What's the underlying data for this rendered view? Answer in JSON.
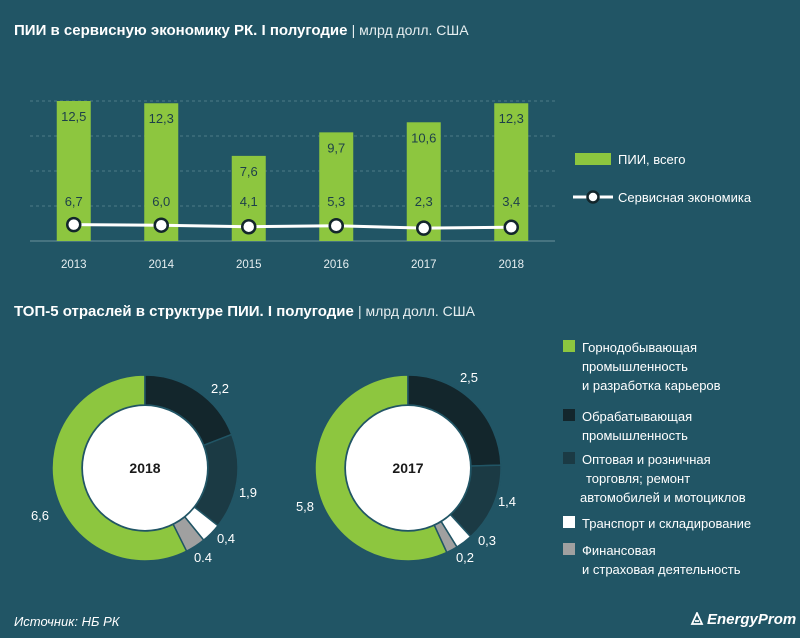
{
  "title1": {
    "main": "ПИИ  в сервисную  экономику  РК.  I полугодие",
    "unit": "| млрд  долл. США"
  },
  "title2": {
    "main": "ТОП-5  отраслей в структуре ПИИ.  I полугодие",
    "unit": "| млрд  долл. США"
  },
  "footer": {
    "source": "Источник: НБ РК",
    "brand": "EnergyProm"
  },
  "colors": {
    "background": "#215565",
    "green": "#8dc63f",
    "dark1": "#13262c",
    "dark2": "#1b3a44",
    "white": "#ffffff",
    "gray": "#a0a0a0"
  },
  "chart_data": [
    {
      "type": "bar",
      "categories": [
        "2013",
        "2014",
        "2015",
        "2016",
        "2017",
        "2018"
      ],
      "series": [
        {
          "name": "ПИИ, всего",
          "type": "bar",
          "values": [
            12.5,
            12.3,
            7.6,
            9.7,
            10.6,
            12.3
          ],
          "labels": [
            "12,5",
            "12,3",
            "7,6",
            "9,7",
            "10,6",
            "12,3"
          ]
        },
        {
          "name": "Сервисная экономика",
          "type": "line",
          "values": [
            6.7,
            6.0,
            4.1,
            5.3,
            2.3,
            3.4
          ],
          "labels": [
            "6,7",
            "6,0",
            "4,1",
            "5,3",
            "2,3",
            "3,4"
          ]
        }
      ],
      "ylim": [
        0,
        12.5
      ],
      "grid": true,
      "legend": "right"
    },
    {
      "type": "pie",
      "center_label": "2018",
      "categories": [
        "Горнодобывающая промышленность и разработка карьеров",
        "Обрабатывающая промышленность",
        "Оптовая и розничная торговля; ремонт автомобилей и мотоциклов",
        "Транспорт и складирование",
        "Финансовая и страховая деятельность"
      ],
      "values": [
        6.6,
        2.2,
        1.9,
        0.4,
        0.4
      ],
      "labels": [
        "6,6",
        "2,2",
        "1,9",
        "0,4",
        "0.4"
      ]
    },
    {
      "type": "pie",
      "center_label": "2017",
      "categories": [
        "Горнодобывающая промышленность и разработка карьеров",
        "Обрабатывающая промышленность",
        "Оптовая и розничная торговля; ремонт автомобилей и мотоциклов",
        "Транспорт и складирование",
        "Финансовая и страховая деятельность"
      ],
      "values": [
        5.8,
        2.5,
        1.4,
        0.3,
        0.2
      ],
      "labels": [
        "5,8",
        "2,5",
        "1,4",
        "0,3",
        "0,2"
      ]
    }
  ],
  "legend_top": [
    {
      "label": "ПИИ, всего"
    },
    {
      "label": "Сервисная экономика"
    }
  ],
  "legend_bottom": [
    {
      "lines": [
        "Горнодобывающая",
        "промышленность",
        "и разработка карьеров"
      ]
    },
    {
      "lines": [
        "Обрабатывающая",
        "промышленность"
      ]
    },
    {
      "lines": [
        "Оптовая и розничная",
        "торговля; ремонт",
        "автомобилей и мотоциклов"
      ]
    },
    {
      "lines": [
        "Транспорт и складирование"
      ]
    },
    {
      "lines": [
        "Финансовая",
        "и страховая деятельность"
      ]
    }
  ]
}
